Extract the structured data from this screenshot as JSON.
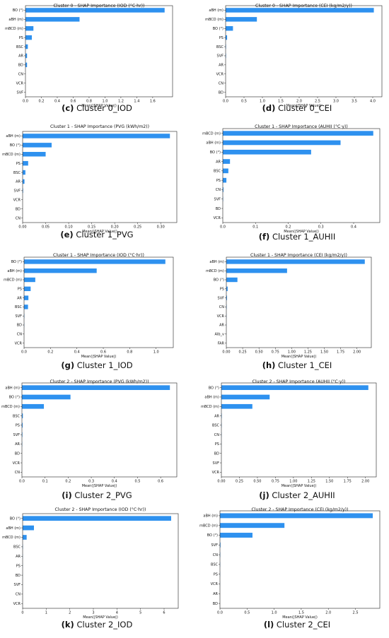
{
  "chart_data": [
    {
      "id": "c",
      "type": "bar",
      "orientation": "horizontal",
      "title": "Cluster 0 - SHAP Importance (IOD (°C·hr))",
      "xlabel": "Mean(|SHAP Value|)",
      "caption_letter": "(c)",
      "caption_text": "Cluster 0_IOD",
      "categories": [
        "BO (°)",
        "aBH (m)",
        "mBCD (m)",
        "PS",
        "BSC",
        "AR",
        "BD",
        "CN",
        "VCR",
        "SVF"
      ],
      "values": [
        1.75,
        0.68,
        0.1,
        0.08,
        0.03,
        0.02,
        0.02,
        0.0,
        0.0,
        0.0
      ],
      "xlim": [
        0,
        1.85
      ],
      "xticks": [
        0.0,
        0.2,
        0.4,
        0.6,
        0.8,
        1.0,
        1.2,
        1.4,
        1.6
      ],
      "tick_labels": [
        "0.0",
        "0.2",
        "0.4",
        "0.6",
        "0.8",
        "1.0",
        "1.2",
        "1.4",
        "1.6"
      ]
    },
    {
      "id": "d",
      "type": "bar",
      "orientation": "horizontal",
      "title": "Cluster 0 - SHAP Importance (CEI (kg/m2/y))",
      "xlabel": "Mean(|SHAP Value|)",
      "caption_letter": "(d)",
      "caption_text": "Cluster 0_CEI",
      "categories": [
        "aBH (m)",
        "mBCD (m)",
        "BO (°)",
        "PS",
        "BSC",
        "SVF",
        "AR",
        "VCR",
        "CN",
        "BD"
      ],
      "values": [
        4.03,
        0.85,
        0.2,
        0.04,
        0.01,
        0.01,
        0.0,
        0.0,
        0.0,
        0.0
      ],
      "xlim": [
        0,
        4.25
      ],
      "xticks": [
        0.0,
        0.5,
        1.0,
        1.5,
        2.0,
        2.5,
        3.0,
        3.5,
        4.0
      ],
      "tick_labels": [
        "0.0",
        "0.5",
        "1.0",
        "1.5",
        "2.0",
        "2.5",
        "3.0",
        "3.5",
        "4.0"
      ]
    },
    {
      "id": "e",
      "type": "bar",
      "orientation": "horizontal",
      "title": "Cluster 1 - SHAP Importance (PVG (kWh/m2))",
      "xlabel": "Mean(|SHAP Value|)",
      "caption_letter": "(e)",
      "caption_text": "Cluster 1_PVG",
      "categories": [
        "aBH (m)",
        "BO (°)",
        "mBCD (m)",
        "PS",
        "BSC",
        "AR",
        "SVF",
        "VCR",
        "BD",
        "CN"
      ],
      "values": [
        0.32,
        0.063,
        0.05,
        0.012,
        0.006,
        0.004,
        0.001,
        0.0,
        0.0,
        0.0
      ],
      "xlim": [
        0,
        0.335
      ],
      "xticks": [
        0.0,
        0.05,
        0.1,
        0.15,
        0.2,
        0.25,
        0.3
      ],
      "tick_labels": [
        "0.00",
        "0.05",
        "0.10",
        "0.15",
        "0.20",
        "0.25",
        "0.30"
      ]
    },
    {
      "id": "f",
      "type": "bar",
      "orientation": "horizontal",
      "title": "Cluster 1 - SHAP Importance (AUHII (°C·y))",
      "xlabel": "Mean(|SHAP Value|)",
      "caption_letter": "(f)",
      "caption_text": "Cluster 1_AUHII",
      "categories": [
        "mBCD (m)",
        "aBH (m)",
        "BO (°)",
        "AR",
        "BSC",
        "PS",
        "CN",
        "SVF",
        "BD",
        "VCR"
      ],
      "values": [
        0.46,
        0.36,
        0.27,
        0.022,
        0.017,
        0.011,
        0.002,
        0.001,
        0.0,
        0.0
      ],
      "xlim": [
        0,
        0.48
      ],
      "xticks": [
        0.0,
        0.1,
        0.2,
        0.3,
        0.4
      ],
      "tick_labels": [
        "0.0",
        "0.1",
        "0.2",
        "0.3",
        "0.4"
      ]
    },
    {
      "id": "g",
      "type": "bar",
      "orientation": "horizontal",
      "title": "Cluster 1 - SHAP Importance (IOD (°C·hr))",
      "xlabel": "Mean(|SHAP Value|)",
      "caption_letter": "(g)",
      "caption_text": "Cluster 1_IOD",
      "categories": [
        "BO (°)",
        "aBH (m)",
        "mBCD (m)",
        "PS",
        "AR",
        "BSC",
        "SVF",
        "BD",
        "CN",
        "VCR"
      ],
      "values": [
        1.07,
        0.55,
        0.085,
        0.05,
        0.033,
        0.03,
        0.002,
        0.001,
        0.0,
        0.0
      ],
      "xlim": [
        0,
        1.13
      ],
      "xticks": [
        0.0,
        0.2,
        0.4,
        0.6,
        0.8,
        1.0
      ],
      "tick_labels": [
        "0.0",
        "0.2",
        "0.4",
        "0.6",
        "0.8",
        "1.0"
      ]
    },
    {
      "id": "h",
      "type": "bar",
      "orientation": "horizontal",
      "title": "Cluster 1 - SHAP Importance (CEI (kg/m2/y))",
      "xlabel": "Mean(|SHAP Value|)",
      "caption_letter": "(h)",
      "caption_text": "Cluster 1_CEI",
      "categories": [
        "aBH (m)",
        "mBCD (m)",
        "BO (°)",
        "PS",
        "SVF",
        "CN",
        "VCR",
        "AR",
        "AIb_v",
        "FAR"
      ],
      "values": [
        2.12,
        0.93,
        0.17,
        0.02,
        0.01,
        0.005,
        0.002,
        0.001,
        0.0,
        0.0
      ],
      "xlim": [
        0,
        2.22
      ],
      "xticks": [
        0.0,
        0.25,
        0.5,
        0.75,
        1.0,
        1.25,
        1.5,
        1.75,
        2.0
      ],
      "tick_labels": [
        "0.00",
        "0.25",
        "0.50",
        "0.75",
        "1.00",
        "1.25",
        "1.50",
        "1.75",
        "2.00"
      ]
    },
    {
      "id": "i",
      "type": "bar",
      "orientation": "horizontal",
      "title": "Cluster 2 - SHAP Importance (PVG (kWh/m2))",
      "xlabel": "Mean(|SHAP Value|)",
      "caption_letter": "(i)",
      "caption_text": "Cluster 2_PVG",
      "categories": [
        "aBH (m)",
        "BO (°)",
        "mBCD (m)",
        "BSC",
        "PS",
        "SVF",
        "AR",
        "BD",
        "VCR",
        "CN"
      ],
      "values": [
        0.64,
        0.21,
        0.095,
        0.004,
        0.003,
        0.002,
        0.001,
        0.0,
        0.0,
        0.0
      ],
      "xlim": [
        0,
        0.67
      ],
      "xticks": [
        0.0,
        0.1,
        0.2,
        0.3,
        0.4,
        0.5,
        0.6
      ],
      "tick_labels": [
        "0.0",
        "0.1",
        "0.2",
        "0.3",
        "0.4",
        "0.5",
        "0.6"
      ]
    },
    {
      "id": "j",
      "type": "bar",
      "orientation": "horizontal",
      "title": "Cluster 2 - SHAP Importance (AUHII (°C·y))",
      "xlabel": "Mean(|SHAP Value|)",
      "caption_letter": "(j)",
      "caption_text": "Cluster 2_AUHII",
      "categories": [
        "BO (°)",
        "aBH (m)",
        "mBCD (m)",
        "AR",
        "BSC",
        "CN",
        "PS",
        "BD",
        "SVF",
        "VCR"
      ],
      "values": [
        2.04,
        0.67,
        0.43,
        0.005,
        0.003,
        0.002,
        0.001,
        0.0,
        0.0,
        0.0
      ],
      "xlim": [
        0,
        2.15
      ],
      "xticks": [
        0.0,
        0.25,
        0.5,
        0.75,
        1.0,
        1.25,
        1.5,
        1.75,
        2.0
      ],
      "tick_labels": [
        "0.00",
        "0.25",
        "0.50",
        "0.75",
        "1.00",
        "1.25",
        "1.50",
        "1.75",
        "2.00"
      ]
    },
    {
      "id": "k",
      "type": "bar",
      "orientation": "horizontal",
      "title": "Cluster 2 - SHAP Importance (IOD (°C·hr))",
      "xlabel": "Mean(|SHAP Value|)",
      "caption_letter": "(k)",
      "caption_text": "Cluster 2_IOD",
      "categories": [
        "BO (°)",
        "aBH (m)",
        "mBCD (m)",
        "BSC",
        "AR",
        "PS",
        "BD",
        "SVF",
        "CN",
        "VCR"
      ],
      "values": [
        6.3,
        0.48,
        0.17,
        0.01,
        0.005,
        0.003,
        0.002,
        0.001,
        0.0,
        0.0
      ],
      "xlim": [
        0,
        6.6
      ],
      "xticks": [
        0,
        1,
        2,
        3,
        4,
        5,
        6
      ],
      "tick_labels": [
        "0",
        "1",
        "2",
        "3",
        "4",
        "5",
        "6"
      ]
    },
    {
      "id": "l",
      "type": "bar",
      "orientation": "horizontal",
      "title": "Cluster 2 - SHAP Importance (CEI (kg/m2/y))",
      "xlabel": "Mean(|SHAP Value|)",
      "caption_letter": "(l)",
      "caption_text": "Cluster 2_CEI",
      "categories": [
        "aBH (m)",
        "mBCD (m)",
        "BO (°)",
        "SVF",
        "CN",
        "BSC",
        "PS",
        "VCR",
        "AR",
        "BD"
      ],
      "values": [
        2.82,
        1.19,
        0.6,
        0.01,
        0.005,
        0.003,
        0.002,
        0.001,
        0.0,
        0.0
      ],
      "xlim": [
        0,
        2.95
      ],
      "xticks": [
        0.0,
        0.5,
        1.0,
        1.5,
        2.0,
        2.5
      ],
      "tick_labels": [
        "0.0",
        "0.5",
        "1.0",
        "1.5",
        "2.0",
        "2.5"
      ]
    }
  ]
}
